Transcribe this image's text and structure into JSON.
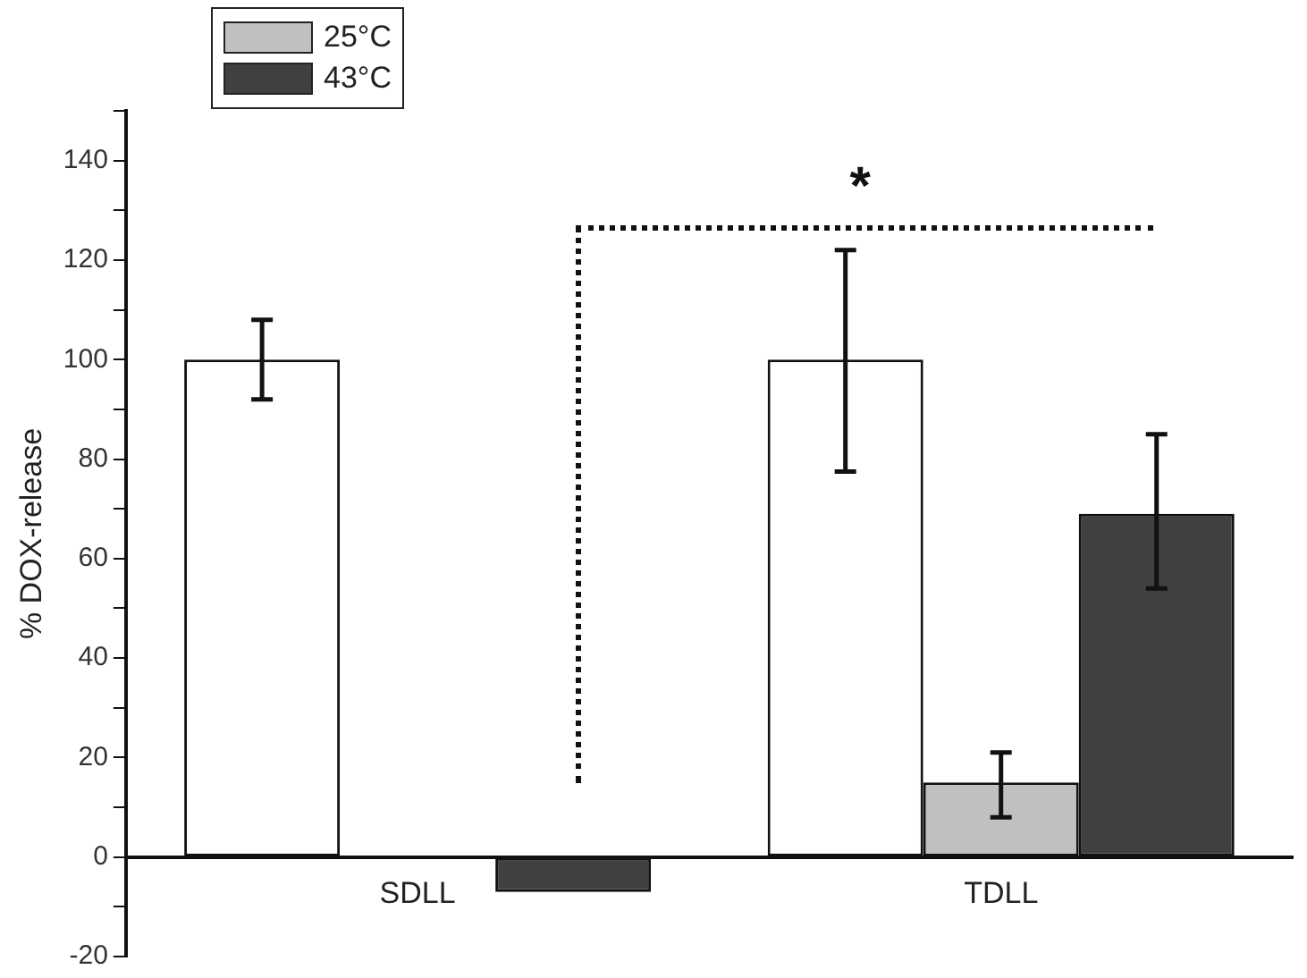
{
  "chart_data": {
    "type": "bar",
    "ylabel": "% DOX-release",
    "categories": [
      "SDLL",
      "TDLL"
    ],
    "series": [
      {
        "color": "#ffffff",
        "values": [
          100,
          100
        ],
        "errors": [
          8,
          [
            77.5,
            122
          ]
        ]
      },
      {
        "name": "25°C",
        "color": "#c0c0c0",
        "values": [
          0,
          15
        ],
        "errors": [
          null,
          [
            8,
            21
          ]
        ]
      },
      {
        "name": "43°C",
        "color": "#404040",
        "values": [
          -7,
          69
        ],
        "errors": [
          null,
          [
            54,
            85
          ]
        ]
      }
    ],
    "ylim": [
      -20,
      150
    ],
    "yticks": [
      -20,
      {
        "value": -10,
        "label": null
      },
      0,
      {
        "value": 10,
        "label": null
      },
      20,
      {
        "value": 30,
        "label": null
      },
      40,
      {
        "value": 50,
        "label": null
      },
      60,
      {
        "value": 70,
        "label": null
      },
      80,
      {
        "value": 90,
        "label": null
      },
      100,
      {
        "value": 110,
        "label": null
      },
      120,
      {
        "value": 130,
        "label": null
      },
      140,
      {
        "value": 150,
        "label": null
      }
    ],
    "annotations": [
      "*"
    ],
    "legend": "top left",
    "grid": false
  }
}
